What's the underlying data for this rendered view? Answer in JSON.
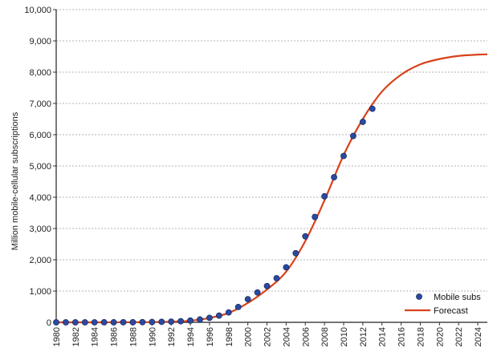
{
  "chart_data": {
    "type": "line",
    "ylabel": "Million mobile-cellular subscriptions",
    "xlabel": "",
    "xlim": [
      1980,
      2025
    ],
    "ylim": [
      0,
      10000
    ],
    "y_ticks": [
      0,
      1000,
      2000,
      3000,
      4000,
      5000,
      6000,
      7000,
      8000,
      9000,
      10000
    ],
    "y_tick_labels": [
      "0",
      "1,000",
      "2,000",
      "3,000",
      "4,000",
      "5,000",
      "6,000",
      "7,000",
      "8,000",
      "9,000",
      "10,000"
    ],
    "x_ticks": [
      1980,
      1982,
      1984,
      1986,
      1988,
      1990,
      1992,
      1994,
      1996,
      1998,
      2000,
      2002,
      2004,
      2006,
      2008,
      2010,
      2012,
      2014,
      2016,
      2018,
      2020,
      2022,
      2024
    ],
    "x_tick_labels": [
      "1980",
      "1982",
      "1984",
      "1986",
      "1988",
      "1990",
      "1992",
      "1994",
      "1996",
      "1998",
      "2000",
      "2002",
      "2004",
      "2006",
      "2008",
      "2010",
      "2012",
      "2014",
      "2016",
      "2018",
      "2020",
      "2022",
      "2024"
    ],
    "grid": "horizontal-dashed",
    "legend_position": "bottom-right",
    "series": [
      {
        "name": "Mobile subs",
        "kind": "scatter",
        "color": "#2a4aa0",
        "x": [
          1980,
          1981,
          1982,
          1983,
          1984,
          1985,
          1986,
          1987,
          1988,
          1989,
          1990,
          1991,
          1992,
          1993,
          1994,
          1995,
          1996,
          1997,
          1998,
          1999,
          2000,
          2001,
          2002,
          2003,
          2004,
          2005,
          2006,
          2007,
          2008,
          2009,
          2010,
          2011,
          2012,
          2013
        ],
        "y": [
          0,
          0,
          0,
          0,
          0,
          1,
          1,
          2,
          4,
          7,
          11,
          16,
          23,
          34,
          56,
          91,
          145,
          215,
          318,
          490,
          740,
          955,
          1160,
          1410,
          1760,
          2210,
          2750,
          3370,
          4030,
          4640,
          5320,
          5960,
          6410,
          6830
        ]
      },
      {
        "name": "Forecast",
        "kind": "line",
        "color": "#d8421a",
        "x": [
          1980,
          1982,
          1984,
          1986,
          1988,
          1990,
          1992,
          1994,
          1996,
          1998,
          2000,
          2002,
          2004,
          2006,
          2008,
          2010,
          2012,
          2014,
          2016,
          2018,
          2020,
          2022,
          2024,
          2025
        ],
        "y": [
          0,
          0,
          0,
          1,
          3,
          8,
          20,
          50,
          140,
          300,
          620,
          1050,
          1620,
          2600,
          3900,
          5350,
          6500,
          7380,
          7920,
          8250,
          8420,
          8520,
          8560,
          8570
        ]
      }
    ]
  }
}
